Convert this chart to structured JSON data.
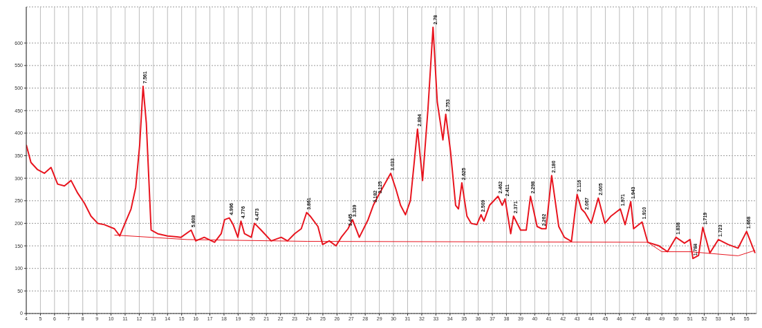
{
  "chart_data": {
    "type": "line",
    "xlim": [
      4,
      55.7
    ],
    "xticks": [
      4,
      5,
      6,
      7,
      8,
      9,
      10,
      11,
      12,
      13,
      14,
      15,
      16,
      17,
      18,
      19,
      20,
      21,
      22,
      23,
      24,
      25,
      26,
      27,
      28,
      29,
      30,
      31,
      32,
      33,
      34,
      35,
      36,
      37,
      38,
      39,
      40,
      41,
      42,
      43,
      44,
      45,
      46,
      47,
      48,
      49,
      50,
      51,
      52,
      53,
      54,
      55
    ],
    "ylim": [
      0,
      680
    ],
    "yticks": [
      0,
      50,
      100,
      150,
      200,
      250,
      300,
      350,
      400,
      450,
      500,
      550,
      600
    ],
    "grid": true,
    "legend": false,
    "marker": "none",
    "line_style": "solid",
    "series": [
      {
        "color": "#e8141e",
        "x": [
          4,
          4.33,
          4.8,
          5.28,
          5.75,
          6.22,
          6.7,
          7.17,
          7.64,
          8.11,
          8.58,
          9.06,
          9.53,
          10.24,
          10.62,
          10.95,
          11.42,
          11.75,
          12.03,
          12.27,
          12.5,
          12.84,
          13.3,
          14.0,
          14.96,
          15.67,
          16.0,
          16.6,
          17.33,
          17.8,
          18.04,
          18.37,
          18.65,
          18.98,
          19.2,
          19.45,
          19.93,
          20.16,
          20.63,
          21.34,
          22.05,
          22.5,
          23.0,
          23.47,
          23.85,
          24.1,
          24.65,
          24.98,
          25.45,
          25.93,
          26.3,
          26.78,
          27.1,
          27.58,
          28.2,
          28.57,
          28.9,
          29.8,
          30.17,
          30.5,
          30.85,
          31.2,
          31.7,
          32.06,
          32.44,
          32.8,
          33.1,
          33.5,
          33.7,
          34.04,
          34.4,
          34.6,
          34.84,
          35.2,
          35.5,
          35.9,
          36.2,
          36.4,
          36.8,
          37.4,
          37.7,
          37.9,
          38.3,
          38.5,
          39.0,
          39.4,
          39.7,
          40.17,
          40.5,
          40.8,
          41.2,
          41.7,
          42.1,
          42.6,
          43.0,
          43.3,
          43.55,
          44.0,
          44.5,
          44.97,
          45.4,
          46.06,
          46.4,
          46.8,
          47.0,
          47.6,
          48.0,
          48.8,
          49.4,
          50.0,
          50.6,
          51.0,
          51.2,
          51.6,
          51.9,
          52.4,
          53.0,
          53.7,
          54.4,
          55.0,
          55.6
        ],
        "values": [
          374,
          335,
          319,
          311,
          324,
          287,
          283,
          295,
          267,
          245,
          216,
          200,
          197,
          188,
          172,
          197,
          232,
          280,
          374,
          504,
          422,
          185,
          177,
          172,
          169,
          185,
          161,
          169,
          158,
          177,
          208,
          212,
          197,
          169,
          205,
          177,
          169,
          200,
          185,
          161,
          169,
          161,
          177,
          188,
          224,
          216,
          193,
          153,
          161,
          150,
          169,
          188,
          208,
          169,
          208,
          240,
          260,
          311,
          276,
          240,
          219,
          251,
          409,
          295,
          453,
          635,
          469,
          385,
          442,
          359,
          240,
          232,
          290,
          216,
          200,
          197,
          219,
          205,
          240,
          260,
          240,
          254,
          177,
          216,
          185,
          185,
          260,
          193,
          188,
          188,
          306,
          193,
          169,
          160,
          264,
          232,
          224,
          200,
          256,
          200,
          216,
          232,
          197,
          248,
          188,
          203,
          158,
          150,
          137,
          169,
          156,
          164,
          122,
          129,
          191,
          134,
          164,
          153,
          145,
          182,
          134
        ]
      },
      {
        "color": "#e8141e",
        "x": [
          10.24,
          15.4,
          23.9,
          48.0,
          49.0,
          51.0,
          54.4,
          55.6
        ],
        "values": [
          174,
          164,
          160,
          158,
          137,
          137,
          128,
          140
        ]
      }
    ],
    "annotations": [
      {
        "text": "7.561",
        "x": 12.27,
        "y": 504
      },
      {
        "text": "5.808",
        "x": 15.67,
        "y": 185
      },
      {
        "text": "4.996",
        "x": 18.37,
        "y": 212
      },
      {
        "text": "4.776",
        "x": 19.2,
        "y": 205
      },
      {
        "text": "4.473",
        "x": 20.16,
        "y": 200
      },
      {
        "text": "3.861",
        "x": 23.85,
        "y": 224
      },
      {
        "text": "3.445",
        "x": 26.78,
        "y": 188
      },
      {
        "text": "3.339",
        "x": 27.1,
        "y": 208
      },
      {
        "text": "3.182",
        "x": 28.57,
        "y": 240
      },
      {
        "text": "3.125",
        "x": 28.9,
        "y": 260
      },
      {
        "text": "3.033",
        "x": 29.8,
        "y": 311
      },
      {
        "text": "2.894",
        "x": 31.7,
        "y": 409
      },
      {
        "text": "2.78",
        "x": 32.8,
        "y": 635
      },
      {
        "text": "2.753",
        "x": 33.7,
        "y": 442
      },
      {
        "text": "2.625",
        "x": 34.84,
        "y": 290
      },
      {
        "text": "2.509",
        "x": 36.2,
        "y": 219
      },
      {
        "text": "2.462",
        "x": 37.4,
        "y": 260
      },
      {
        "text": "2.411",
        "x": 37.9,
        "y": 254
      },
      {
        "text": "2.371",
        "x": 38.5,
        "y": 216
      },
      {
        "text": "2.298",
        "x": 39.7,
        "y": 260
      },
      {
        "text": "2.262",
        "x": 40.5,
        "y": 188
      },
      {
        "text": "2.180",
        "x": 41.2,
        "y": 306
      },
      {
        "text": "2.116",
        "x": 43.0,
        "y": 264
      },
      {
        "text": "2.067",
        "x": 43.55,
        "y": 224
      },
      {
        "text": "2.005",
        "x": 44.5,
        "y": 256
      },
      {
        "text": "1.971",
        "x": 46.06,
        "y": 232
      },
      {
        "text": "1.943",
        "x": 46.8,
        "y": 248
      },
      {
        "text": "1.910",
        "x": 47.6,
        "y": 203
      },
      {
        "text": "1.838",
        "x": 50.0,
        "y": 169
      },
      {
        "text": "1.784",
        "x": 51.2,
        "y": 122
      },
      {
        "text": "1.719",
        "x": 51.9,
        "y": 191
      },
      {
        "text": "1.723",
        "x": 53.0,
        "y": 164
      },
      {
        "text": "1.668",
        "x": 55.0,
        "y": 182
      }
    ]
  }
}
